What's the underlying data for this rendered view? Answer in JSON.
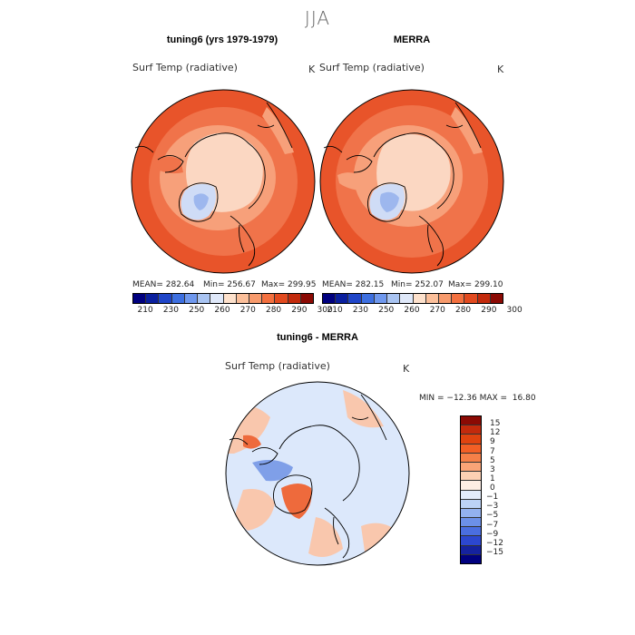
{
  "season": "JJA",
  "panels": {
    "left": {
      "title": "tuning6 (yrs 1979-1979)",
      "variable": "Surf Temp (radiative)",
      "unit": "K",
      "mean": "MEAN= 282.64",
      "min": "Min= 256.67",
      "max": "Max= 299.95"
    },
    "right": {
      "title": "MERRA",
      "variable": "Surf Temp (radiative)",
      "unit": "K",
      "mean": "MEAN= 282.15",
      "min": "Min= 252.07",
      "max": "Max= 299.10"
    },
    "diff": {
      "title": "tuning6 - MERRA",
      "variable": "Surf Temp (radiative)",
      "unit": "K",
      "minmax": "MIN = −12.36 MAX =  16.80"
    }
  },
  "top_colorbar": {
    "ticks": [
      "210",
      "230",
      "250",
      "260",
      "270",
      "280",
      "290",
      "300"
    ],
    "colors": [
      "#00007f",
      "#0a1f9e",
      "#1f45c8",
      "#3d6fe0",
      "#6f98ee",
      "#a9c4f2",
      "#dfe8f9",
      "#fde1cc",
      "#fbbf9a",
      "#f79a6c",
      "#f3703f",
      "#e24a1f",
      "#c32a0c",
      "#8b0a04"
    ]
  },
  "diff_colorbar": {
    "ticks": [
      "15",
      "12",
      "9",
      "7",
      "5",
      "3",
      "1",
      "0",
      "−1",
      "−3",
      "−5",
      "−7",
      "−9",
      "−12",
      "−15"
    ],
    "colors": [
      "#8b0a04",
      "#c32a0c",
      "#e0430f",
      "#f25f25",
      "#f58048",
      "#f9a477",
      "#fcd0b3",
      "#fdeee4",
      "#e3ecfb",
      "#bcd2f6",
      "#93b1ef",
      "#6c90e8",
      "#4a6ee0",
      "#2c47cf",
      "#15229e",
      "#00007f"
    ]
  },
  "map_colors": {
    "warm_dark": "#e8542a",
    "warm_mid": "#f0734a",
    "warm_light": "#f7a07a",
    "polar": "#fbd7c2",
    "greenland": "#cfdcf6",
    "greenland_core": "#9db7ee",
    "diff_base": "#dce8fb",
    "diff_warm": "#f9c7ad",
    "diff_hot": "#ee6a3c",
    "diff_cold": "#7f9fe8",
    "coast": "#000000"
  }
}
